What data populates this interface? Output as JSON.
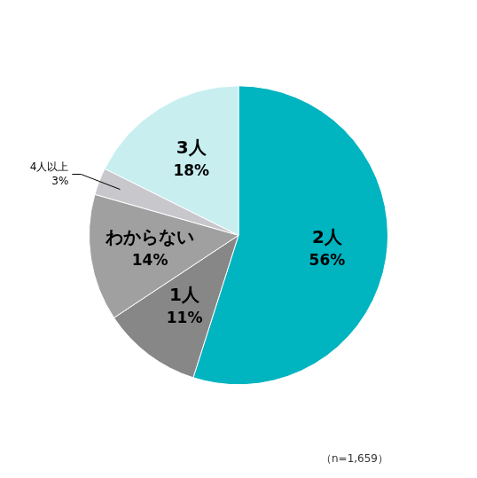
{
  "chart_data": {
    "type": "pie",
    "categories": [
      "2人",
      "1人",
      "わからない",
      "4人以上",
      "3人"
    ],
    "values": [
      56,
      11,
      14,
      3,
      18
    ],
    "value_labels": [
      "56%",
      "11%",
      "14%",
      "3%",
      "18%"
    ],
    "colors": [
      "#00B4C0",
      "#878787",
      "#A0A0A0",
      "#C8C8CC",
      "#C8EEF0"
    ],
    "data_labels": true,
    "annotations": [
      "（n=1,659）"
    ]
  }
}
